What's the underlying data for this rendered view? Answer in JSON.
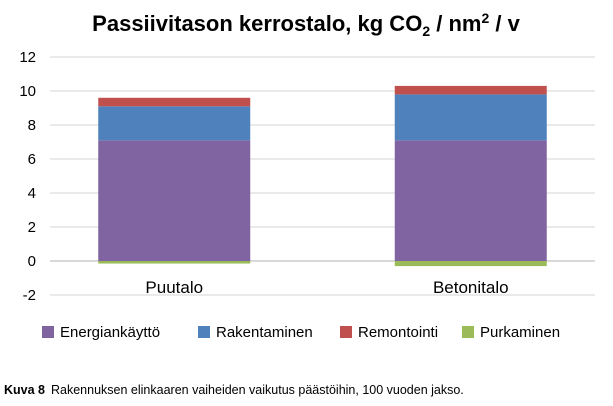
{
  "chart_data": {
    "type": "bar",
    "stacked": true,
    "title": {
      "prefix": "Passiivitason kerrostalo, kg CO",
      "sub": "2",
      "middle": " / nm",
      "sup": "2",
      "suffix": " / v"
    },
    "categories": [
      "Puutalo",
      "Betonitalo"
    ],
    "series": [
      {
        "name": "Energiankäyttö",
        "color": "#8064A2",
        "values": [
          7.1,
          7.1
        ]
      },
      {
        "name": "Rakentaminen",
        "color": "#4F81BD",
        "values": [
          2.0,
          2.7
        ]
      },
      {
        "name": "Remontointi",
        "color": "#C0504D",
        "values": [
          0.5,
          0.5
        ]
      },
      {
        "name": "Purkaminen",
        "color": "#9BBB59",
        "values": [
          -0.15,
          -0.3
        ]
      }
    ],
    "ylim": [
      -2,
      12
    ],
    "yticks": [
      -2,
      0,
      2,
      4,
      6,
      8,
      10,
      12
    ],
    "grid": true,
    "legend_position": "bottom"
  },
  "caption": {
    "label": "Kuva 8",
    "text": "Rakennuksen elinkaaren vaiheiden vaikutus päästöihin, 100 vuoden jakso."
  }
}
